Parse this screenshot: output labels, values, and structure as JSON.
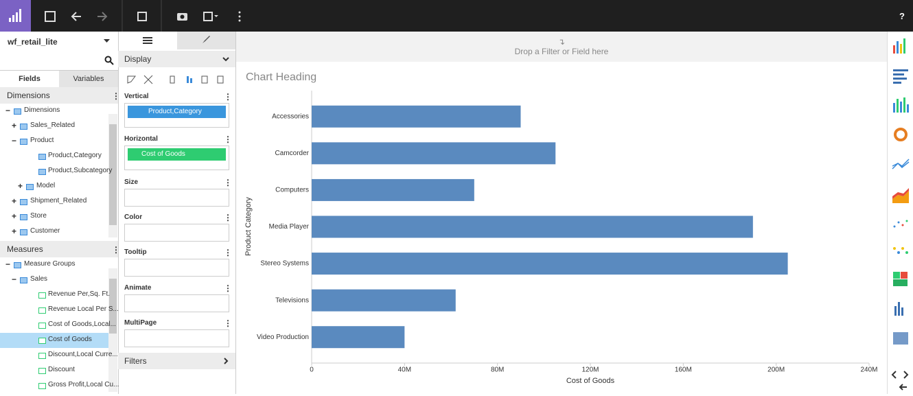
{
  "app": {
    "help": "?",
    "source": "wf_retail_lite",
    "tabs": [
      "Fields",
      "Variables"
    ]
  },
  "dimensions": {
    "title": "Dimensions",
    "items": [
      "Dimensions",
      "Sales_Related",
      "Product",
      "Product,Category",
      "Product,Subcategory",
      "Model",
      "Shipment_Related",
      "Store",
      "Customer"
    ]
  },
  "measures": {
    "title": "Measures",
    "items": [
      "Measure Groups",
      "Sales",
      "Revenue Per,Sq. Ft.",
      "Revenue Local Per S...",
      "Cost of Goods,Local...",
      "Cost of Goods",
      "Discount,Local Curre...",
      "Discount",
      "Gross Profit,Local Cu..."
    ]
  },
  "query": {
    "section": "Display",
    "filters": "Filters",
    "buckets": [
      {
        "label": "Vertical",
        "field": "Product,Category"
      },
      {
        "label": "Horizontal",
        "field": "Cost of Goods"
      },
      {
        "label": "Size"
      },
      {
        "label": "Color"
      },
      {
        "label": "Tooltip"
      },
      {
        "label": "Animate"
      },
      {
        "label": "MultiPage"
      }
    ]
  },
  "drop_zone": "Drop a Filter or Field here",
  "chart_data": {
    "type": "bar",
    "orientation": "horizontal",
    "title": "Chart Heading",
    "x_label": "Cost of Goods",
    "y_label": "Product Category",
    "categories": [
      "Accessories",
      "Camcorder",
      "Computers",
      "Media Player",
      "Stereo Systems",
      "Televisions",
      "Video Production"
    ],
    "values": [
      90000000,
      105000000,
      70000000,
      190000000,
      205000000,
      62000000,
      40000000
    ],
    "color": "#5a8abf",
    "xlim": [
      0,
      240000000
    ],
    "xticks": [
      0,
      {
        "value": 40000000,
        "label": "40M"
      },
      {
        "value": 80000000,
        "label": "80M"
      },
      {
        "value": 120000000,
        "label": "120M"
      },
      {
        "value": 160000000,
        "label": "160M"
      },
      {
        "value": 200000000,
        "label": "200M"
      },
      {
        "value": 240000000,
        "label": "240M"
      }
    ]
  }
}
